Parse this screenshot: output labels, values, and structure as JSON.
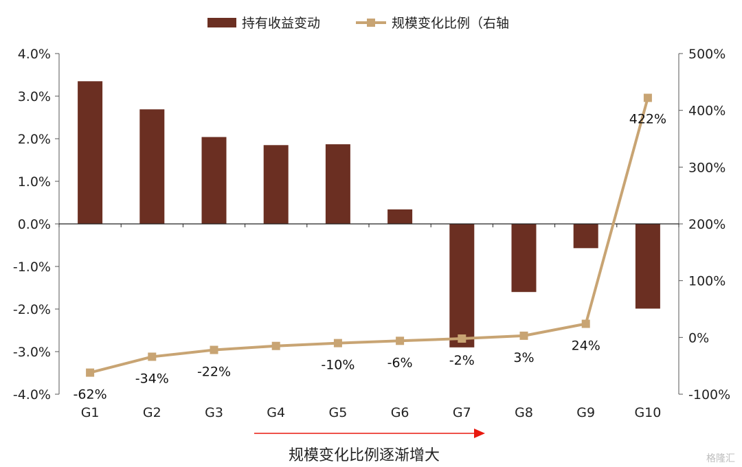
{
  "chart_data": {
    "type": "bar+line",
    "categories": [
      "G1",
      "G2",
      "G3",
      "G4",
      "G5",
      "G6",
      "G7",
      "G8",
      "G9",
      "G10"
    ],
    "series": [
      {
        "name": "持有收益变动",
        "type": "bar",
        "axis": "left",
        "color": "#6b2f22",
        "values": [
          3.35,
          2.69,
          2.04,
          1.85,
          1.87,
          0.34,
          -2.9,
          -1.6,
          -0.57,
          -1.99
        ]
      },
      {
        "name": "规模变化比例（右轴",
        "type": "line",
        "axis": "right",
        "color": "#c8a473",
        "values": [
          -62,
          -34,
          -22,
          -15,
          -10,
          -6,
          -2,
          3,
          24,
          422
        ],
        "data_labels": [
          "-62%",
          "-34%",
          "-22%",
          "",
          "-10%",
          "-6%",
          "-2%",
          "3%",
          "24%",
          "422%"
        ]
      }
    ],
    "y_left": {
      "range": [
        -4,
        4
      ],
      "ticks": [
        "4.0%",
        "3.0%",
        "2.0%",
        "1.0%",
        "0.0%",
        "-1.0%",
        "-2.0%",
        "-3.0%",
        "-4.0%"
      ]
    },
    "y_right": {
      "range": [
        -100,
        500
      ],
      "ticks": [
        "500%",
        "400%",
        "300%",
        "200%",
        "100%",
        "0%",
        "-100%"
      ]
    },
    "legend_position": "top",
    "footer_text": "规模变化比例逐渐增大",
    "footer_arrow_color": "#e8190f"
  },
  "watermark": "格隆汇"
}
